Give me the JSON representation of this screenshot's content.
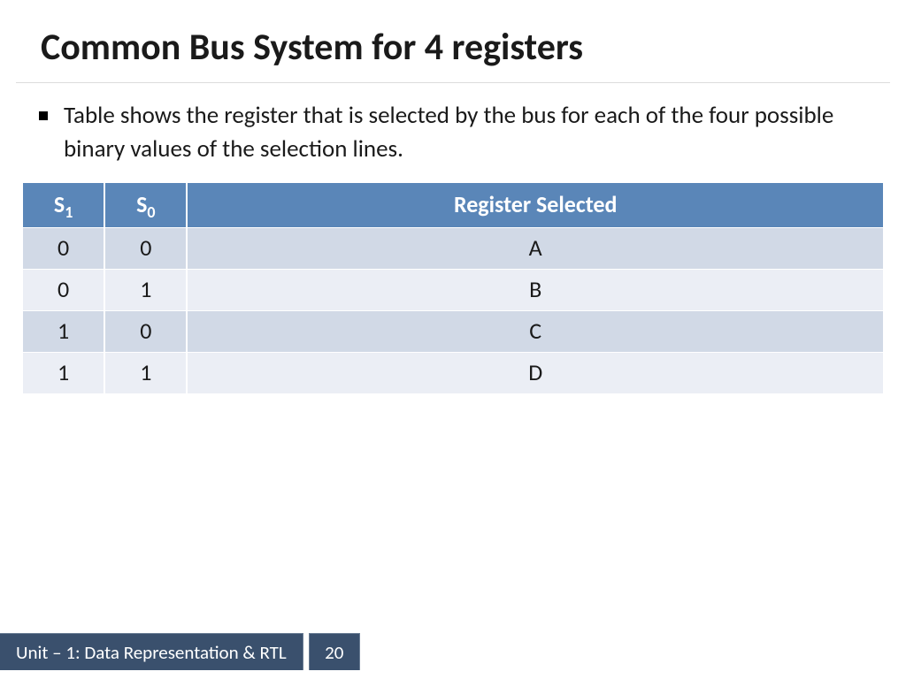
{
  "title": "Common Bus System for 4 registers",
  "bullet": "Table shows the register that is selected by the bus for each of the four possible binary values of the selection lines.",
  "table": {
    "headers": {
      "c0_base": "S",
      "c0_sub": "1",
      "c1_base": "S",
      "c1_sub": "0",
      "c2": "Register Selected"
    },
    "rows": [
      {
        "s1": "0",
        "s0": "0",
        "reg": "A"
      },
      {
        "s1": "0",
        "s0": "1",
        "reg": "B"
      },
      {
        "s1": "1",
        "s0": "0",
        "reg": "C"
      },
      {
        "s1": "1",
        "s0": "1",
        "reg": "D"
      }
    ],
    "header_bg": "#5a86b8",
    "header_fg": "#ffffff",
    "row_odd_bg": "#d1d9e6",
    "row_even_bg": "#ebeef5",
    "cell_fg": "#1a1a1a",
    "header_fontsize": 26,
    "cell_fontsize": 26
  },
  "footer": {
    "label": "Unit – 1: Data Representation & RTL",
    "page": "20",
    "bg": "#3a506d",
    "fg": "#ffffff"
  }
}
